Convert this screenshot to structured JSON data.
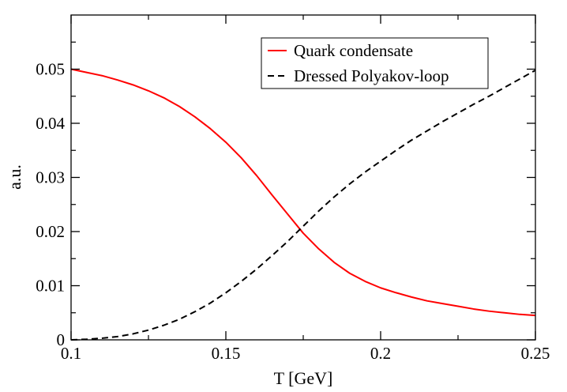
{
  "chart_data": {
    "type": "line",
    "title": "",
    "xlabel": "T [GeV]",
    "ylabel": "a.u.",
    "xlim": [
      0.1,
      0.25
    ],
    "ylim": [
      0,
      0.06
    ],
    "grid": false,
    "legend_position": "top-right",
    "x_ticks": [
      {
        "value": 0.1,
        "label": "0.1"
      },
      {
        "value": 0.15,
        "label": "0.15"
      },
      {
        "value": 0.2,
        "label": "0.2"
      },
      {
        "value": 0.25,
        "label": "0.25"
      }
    ],
    "y_ticks": [
      {
        "value": 0,
        "label": "0"
      },
      {
        "value": 0.01,
        "label": "0.01"
      },
      {
        "value": 0.02,
        "label": "0.02"
      },
      {
        "value": 0.03,
        "label": "0.03"
      },
      {
        "value": 0.04,
        "label": "0.04"
      },
      {
        "value": 0.05,
        "label": "0.05"
      }
    ],
    "series": [
      {
        "name": "Quark condensate",
        "color": "#ff0000",
        "dash": "solid",
        "points": [
          [
            0.1,
            0.05
          ],
          [
            0.105,
            0.0494
          ],
          [
            0.11,
            0.0488
          ],
          [
            0.115,
            0.048
          ],
          [
            0.12,
            0.0471
          ],
          [
            0.125,
            0.046
          ],
          [
            0.13,
            0.0447
          ],
          [
            0.135,
            0.0431
          ],
          [
            0.14,
            0.0412
          ],
          [
            0.145,
            0.039
          ],
          [
            0.15,
            0.0365
          ],
          [
            0.155,
            0.0336
          ],
          [
            0.16,
            0.0303
          ],
          [
            0.165,
            0.0267
          ],
          [
            0.17,
            0.0232
          ],
          [
            0.175,
            0.0197
          ],
          [
            0.18,
            0.0168
          ],
          [
            0.185,
            0.0143
          ],
          [
            0.19,
            0.0123
          ],
          [
            0.195,
            0.0108
          ],
          [
            0.2,
            0.0096
          ],
          [
            0.205,
            0.0087
          ],
          [
            0.21,
            0.0079
          ],
          [
            0.215,
            0.0072
          ],
          [
            0.22,
            0.0067
          ],
          [
            0.225,
            0.0062
          ],
          [
            0.23,
            0.0057
          ],
          [
            0.235,
            0.0053
          ],
          [
            0.24,
            0.005
          ],
          [
            0.245,
            0.0047
          ],
          [
            0.25,
            0.0045
          ]
        ]
      },
      {
        "name": "Dressed Polyakov-loop",
        "color": "#000000",
        "dash": "dashed",
        "points": [
          [
            0.1,
            0.0
          ],
          [
            0.105,
            0.0001
          ],
          [
            0.11,
            0.0003
          ],
          [
            0.115,
            0.0006
          ],
          [
            0.12,
            0.0011
          ],
          [
            0.125,
            0.0018
          ],
          [
            0.13,
            0.0027
          ],
          [
            0.135,
            0.0038
          ],
          [
            0.14,
            0.0052
          ],
          [
            0.145,
            0.0068
          ],
          [
            0.15,
            0.0087
          ],
          [
            0.155,
            0.0108
          ],
          [
            0.16,
            0.0131
          ],
          [
            0.165,
            0.0156
          ],
          [
            0.17,
            0.0182
          ],
          [
            0.175,
            0.021
          ],
          [
            0.18,
            0.0238
          ],
          [
            0.185,
            0.0264
          ],
          [
            0.19,
            0.0288
          ],
          [
            0.195,
            0.031
          ],
          [
            0.2,
            0.033
          ],
          [
            0.205,
            0.035
          ],
          [
            0.21,
            0.0369
          ],
          [
            0.215,
            0.0386
          ],
          [
            0.22,
            0.0403
          ],
          [
            0.225,
            0.0419
          ],
          [
            0.23,
            0.0435
          ],
          [
            0.235,
            0.045
          ],
          [
            0.24,
            0.0466
          ],
          [
            0.245,
            0.0482
          ],
          [
            0.25,
            0.0498
          ]
        ]
      }
    ]
  }
}
